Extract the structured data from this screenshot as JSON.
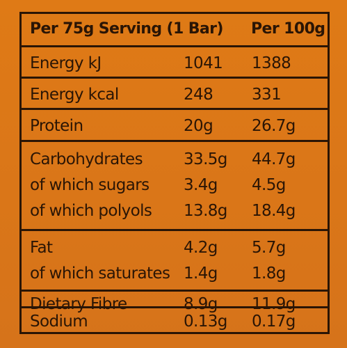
{
  "table": {
    "header": {
      "label": "Per 75g Serving (1 Bar)",
      "per100": "Per 100g"
    },
    "rows": [
      {
        "lines": [
          {
            "label": "Energy kJ",
            "serving": "1041",
            "per100": "1388"
          }
        ]
      },
      {
        "lines": [
          {
            "label": "Energy kcal",
            "serving": "248",
            "per100": "331"
          }
        ]
      },
      {
        "lines": [
          {
            "label": "Protein",
            "serving": "20g",
            "per100": "26.7g"
          }
        ]
      },
      {
        "lines": [
          {
            "label": "Carbohydrates",
            "serving": "33.5g",
            "per100": "44.7g"
          },
          {
            "label": "of which sugars",
            "serving": "3.4g",
            "per100": "4.5g"
          },
          {
            "label": "of which polyols",
            "serving": "13.8g",
            "per100": "18.4g"
          }
        ]
      },
      {
        "lines": [
          {
            "label": "Fat",
            "serving": "4.2g",
            "per100": "5.7g"
          },
          {
            "label": "of which saturates",
            "serving": "1.4g",
            "per100": "1.8g"
          }
        ]
      },
      {
        "lines": [
          {
            "label": "Dietary Fibre",
            "serving": "8.9g",
            "per100": "11.9g"
          }
        ]
      },
      {
        "lines": [
          {
            "label": "Sodium",
            "serving": "0.13g",
            "per100": "0.17g"
          }
        ]
      }
    ]
  }
}
